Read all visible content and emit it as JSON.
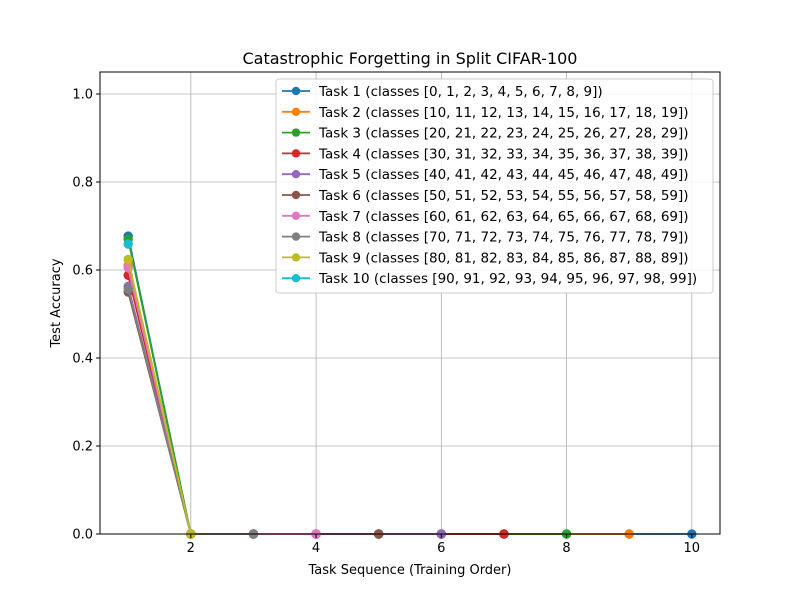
{
  "chart_data": {
    "type": "line",
    "title": "Catastrophic Forgetting in Split CIFAR-100",
    "xlabel": "Task Sequence (Training Order)",
    "ylabel": "Test Accuracy",
    "xlim": [
      0.55,
      10.45
    ],
    "ylim": [
      0,
      1.05
    ],
    "xticks": [
      2,
      4,
      6,
      8,
      10
    ],
    "yticks": [
      0.0,
      0.2,
      0.4,
      0.6,
      0.8,
      1.0
    ],
    "xtick_labels": [
      "2",
      "4",
      "6",
      "8",
      "10"
    ],
    "ytick_labels": [
      "0.0",
      "0.2",
      "0.4",
      "0.6",
      "0.8",
      "1.0"
    ],
    "grid": true,
    "legend_position": "top-right",
    "series": [
      {
        "name": "Task 1 (classes [0, 1, 2, 3, 4, 5, 6, 7, 8, 9])",
        "color": "#1f77b4",
        "x": [
          1,
          2,
          3,
          4,
          5,
          6,
          7,
          8,
          9,
          10
        ],
        "y": [
          0.677,
          0,
          0,
          0,
          0,
          0,
          0,
          0,
          0,
          0
        ]
      },
      {
        "name": "Task 2 (classes [10, 11, 12, 13, 14, 15, 16, 17, 18, 19])",
        "color": "#ff7f0e",
        "x": [
          1,
          2,
          3,
          4,
          5,
          6,
          7,
          8,
          9
        ],
        "y": [
          0.61,
          0,
          0,
          0,
          0,
          0,
          0,
          0,
          0
        ]
      },
      {
        "name": "Task 3 (classes [20, 21, 22, 23, 24, 25, 26, 27, 28, 29])",
        "color": "#2ca02c",
        "x": [
          1,
          2,
          3,
          4,
          5,
          6,
          7,
          8
        ],
        "y": [
          0.67,
          0,
          0,
          0,
          0,
          0,
          0,
          0
        ]
      },
      {
        "name": "Task 4 (classes [30, 31, 32, 33, 34, 35, 36, 37, 38, 39])",
        "color": "#d62728",
        "x": [
          1,
          2,
          3,
          4,
          5,
          6,
          7
        ],
        "y": [
          0.588,
          0,
          0,
          0,
          0,
          0,
          0
        ]
      },
      {
        "name": "Task 5 (classes [40, 41, 42, 43, 44, 45, 46, 47, 48, 49])",
        "color": "#9467bd",
        "x": [
          1,
          2,
          3,
          4,
          5,
          6
        ],
        "y": [
          0.563,
          0,
          0,
          0,
          0,
          0
        ]
      },
      {
        "name": "Task 6 (classes [50, 51, 52, 53, 54, 55, 56, 57, 58, 59])",
        "color": "#8c564b",
        "x": [
          1,
          2,
          3,
          4,
          5
        ],
        "y": [
          0.55,
          0,
          0,
          0,
          0
        ]
      },
      {
        "name": "Task 7 (classes [60, 61, 62, 63, 64, 65, 66, 67, 68, 69])",
        "color": "#e377c2",
        "x": [
          1,
          2,
          3,
          4
        ],
        "y": [
          0.605,
          0,
          0,
          0
        ]
      },
      {
        "name": "Task 8 (classes [70, 71, 72, 73, 74, 75, 76, 77, 78, 79])",
        "color": "#7f7f7f",
        "x": [
          1,
          2,
          3
        ],
        "y": [
          0.557,
          0,
          0
        ]
      },
      {
        "name": "Task 9 (classes [80, 81, 82, 83, 84, 85, 86, 87, 88, 89])",
        "color": "#bcbd22",
        "x": [
          1,
          2
        ],
        "y": [
          0.624,
          0
        ]
      },
      {
        "name": "Task 10 (classes [90, 91, 92, 93, 94, 95, 96, 97, 98, 99])",
        "color": "#17becf",
        "x": [
          1
        ],
        "y": [
          0.659
        ]
      }
    ]
  }
}
